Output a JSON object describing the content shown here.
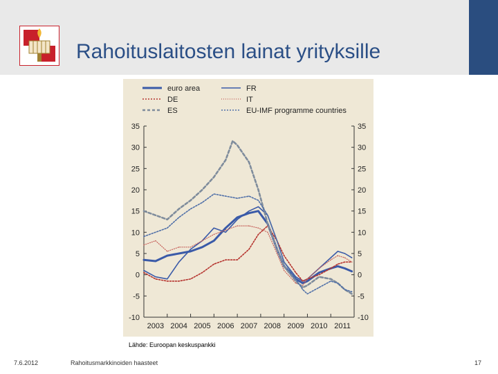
{
  "slide": {
    "title": "Rahoituslaitosten lainat yrityksille",
    "source": "Lähde:  Euroopan keskuspankki",
    "footer_date": "7.6.2012",
    "footer_center": "Rahoitusmarkkinoiden haasteet",
    "page_number": "17",
    "logo_icon": "torch-emblem-icon"
  },
  "colors": {
    "header_bg": "#e9e9e9",
    "header_accent": "#2a4d7f",
    "title": "#2b4f86",
    "chart_bg": "#efe8d6",
    "euro_area": "#3a5aa8",
    "FR": "#3a5aa8",
    "DE": "#b5332e",
    "IT": "#c45b55",
    "ES": "#7f8c9c",
    "EU_IMF": "#4f6fa8"
  },
  "chart_data": {
    "type": "line",
    "title": "",
    "xlabel": "",
    "ylabel": "",
    "ylim": [
      -10,
      35
    ],
    "yticks": [
      35,
      30,
      25,
      20,
      15,
      10,
      5,
      0,
      -5,
      -10
    ],
    "xlim": [
      2003,
      2012
    ],
    "x_tick_labels": [
      "2003",
      "2004",
      "2005",
      "2006",
      "2007",
      "2008",
      "2009",
      "2010",
      "2011"
    ],
    "legend_position": "top",
    "grid": false,
    "series": [
      {
        "name": "euro area",
        "style": "solid-thick",
        "color_key": "euro_area",
        "x": [
          2003.0,
          2003.5,
          2004.0,
          2004.5,
          2005.0,
          2005.5,
          2006.0,
          2006.5,
          2007.0,
          2007.5,
          2007.9,
          2008.3,
          2008.7,
          2009.0,
          2009.5,
          2009.8,
          2010.0,
          2010.5,
          2011.0,
          2011.3,
          2011.6,
          2011.9
        ],
        "y": [
          3.5,
          3.2,
          4.5,
          5.0,
          5.5,
          6.5,
          8.0,
          11.0,
          13.5,
          14.5,
          15.0,
          12.0,
          6.0,
          2.0,
          -1.0,
          -2.0,
          -1.5,
          0.5,
          1.5,
          2.0,
          1.5,
          0.8
        ]
      },
      {
        "name": "FR",
        "style": "solid",
        "color_key": "FR",
        "x": [
          2003.0,
          2003.5,
          2004.0,
          2004.5,
          2005.0,
          2005.5,
          2006.0,
          2006.5,
          2007.0,
          2007.5,
          2007.9,
          2008.3,
          2008.7,
          2009.0,
          2009.5,
          2009.8,
          2010.0,
          2010.5,
          2011.0,
          2011.3,
          2011.6,
          2011.9
        ],
        "y": [
          1.0,
          -0.5,
          -1.0,
          3.0,
          6.0,
          8.0,
          11.0,
          10.0,
          13.0,
          15.0,
          16.0,
          14.0,
          8.0,
          3.0,
          -0.5,
          -1.5,
          -1.0,
          1.5,
          4.0,
          5.5,
          5.0,
          4.0
        ]
      },
      {
        "name": "DE",
        "style": "dotted",
        "color_key": "DE",
        "x": [
          2003.0,
          2003.5,
          2004.0,
          2004.5,
          2005.0,
          2005.5,
          2006.0,
          2006.5,
          2007.0,
          2007.5,
          2007.9,
          2008.3,
          2008.7,
          2009.0,
          2009.5,
          2009.8,
          2010.0,
          2010.5,
          2011.0,
          2011.3,
          2011.6,
          2011.9
        ],
        "y": [
          0.5,
          -1.0,
          -1.5,
          -1.5,
          -1.0,
          0.5,
          2.5,
          3.5,
          3.5,
          6.0,
          9.5,
          11.5,
          8.0,
          4.5,
          0.5,
          -1.5,
          -1.0,
          0.0,
          1.5,
          2.5,
          3.0,
          3.0
        ]
      },
      {
        "name": "IT",
        "style": "dotted-fine",
        "color_key": "IT",
        "x": [
          2003.0,
          2003.5,
          2004.0,
          2004.5,
          2005.0,
          2005.5,
          2006.0,
          2006.5,
          2007.0,
          2007.5,
          2007.9,
          2008.3,
          2008.7,
          2009.0,
          2009.5,
          2009.8,
          2010.0,
          2010.5,
          2011.0,
          2011.3,
          2011.6,
          2011.9
        ],
        "y": [
          7.0,
          8.0,
          5.5,
          6.5,
          6.5,
          8.0,
          9.5,
          10.5,
          11.5,
          11.5,
          11.0,
          10.0,
          5.0,
          1.0,
          -2.0,
          -2.5,
          -1.0,
          1.5,
          3.5,
          4.5,
          4.0,
          3.0
        ]
      },
      {
        "name": "ES",
        "style": "dashed-thick",
        "color_key": "ES",
        "x": [
          2003.0,
          2003.5,
          2004.0,
          2004.5,
          2005.0,
          2005.5,
          2006.0,
          2006.5,
          2006.8,
          2007.0,
          2007.5,
          2007.9,
          2008.3,
          2008.7,
          2009.0,
          2009.5,
          2009.8,
          2010.0,
          2010.5,
          2011.0,
          2011.3,
          2011.6,
          2011.9
        ],
        "y": [
          15.0,
          14.0,
          13.0,
          15.5,
          17.5,
          20.0,
          23.0,
          27.0,
          31.5,
          30.5,
          26.5,
          20.0,
          12.0,
          6.0,
          2.0,
          -1.5,
          -3.0,
          -2.5,
          -0.5,
          -1.0,
          -2.0,
          -3.5,
          -4.5
        ]
      },
      {
        "name": "EU-IMF programme countries",
        "style": "dotted",
        "color_key": "EU_IMF",
        "x": [
          2003.0,
          2003.5,
          2004.0,
          2004.5,
          2005.0,
          2005.5,
          2006.0,
          2006.5,
          2007.0,
          2007.5,
          2007.9,
          2008.3,
          2008.7,
          2009.0,
          2009.5,
          2009.8,
          2010.0,
          2010.5,
          2011.0,
          2011.3,
          2011.6,
          2011.9
        ],
        "y": [
          9.0,
          10.0,
          11.0,
          13.5,
          15.5,
          17.0,
          19.0,
          18.5,
          18.0,
          18.5,
          17.5,
          14.0,
          8.0,
          3.0,
          -1.0,
          -3.5,
          -4.5,
          -3.0,
          -1.5,
          -2.0,
          -3.5,
          -4.0
        ]
      }
    ]
  }
}
